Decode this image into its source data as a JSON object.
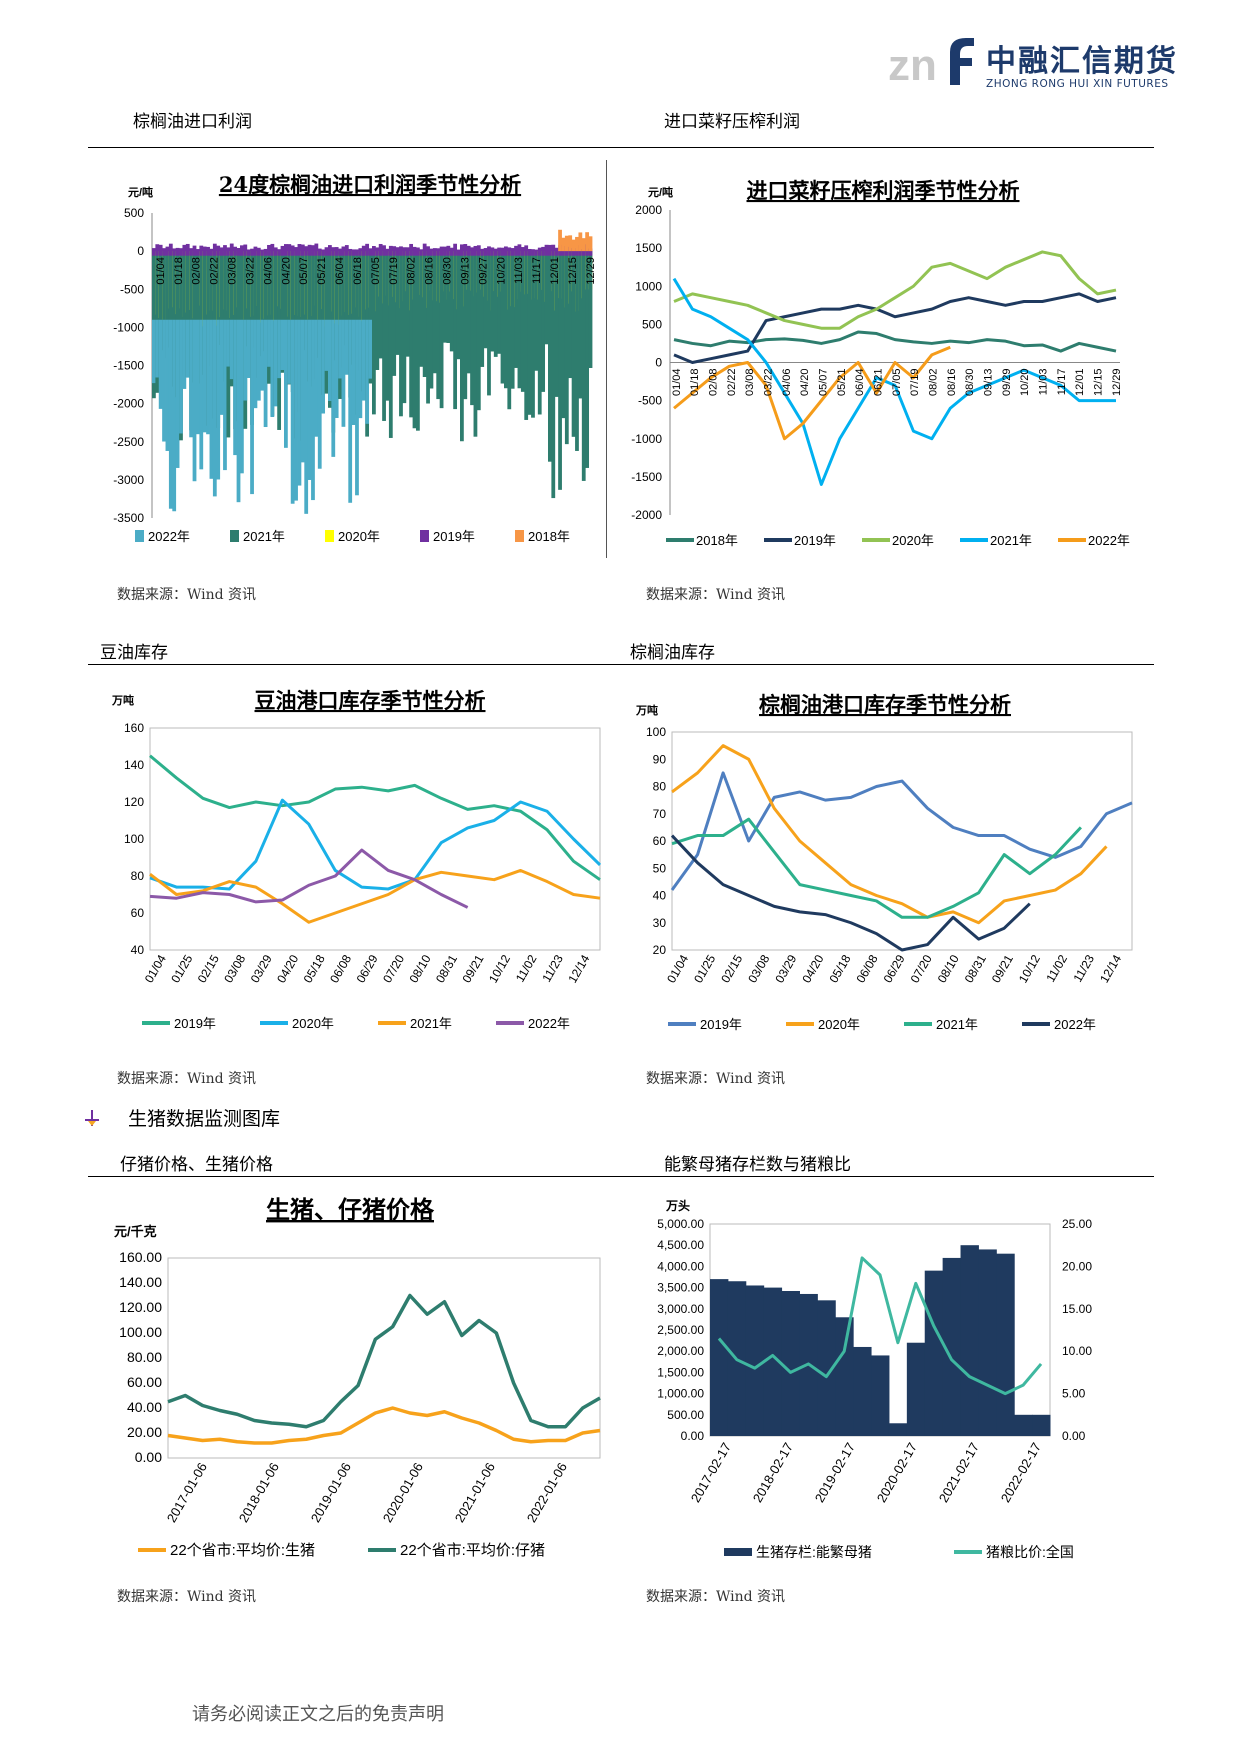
{
  "header": {
    "logo_cn": "中融汇信期货",
    "logo_en": "ZHONG RONG HUI XIN FUTURES",
    "logo_mark": "znf"
  },
  "sections": {
    "palm_import_profit": "棕榈油进口利润",
    "rapeseed_crush_profit": "进口菜籽压榨利润",
    "soyoil_inventory": "豆油库存",
    "palm_inventory": "棕榈油库存",
    "hog_monitor": "生猪数据监测图库",
    "piglet_hog_price": "仔猪价格、生猪价格",
    "sow_ratio": "能繁母猪存栏数与猪粮比"
  },
  "source_label": "数据来源：Wind 资讯",
  "footer": "请务必阅读正文之后的免责声明",
  "colors": {
    "c2022_palm": "#4bacc6",
    "c2021_palm": "#2e7d6e",
    "c2020_palm": "#ffff00",
    "c2019_palm": "#7030a0",
    "c2018_palm": "#f79646",
    "c2018_rs": "#2e7d6e",
    "c2019_rs": "#1f3a5f",
    "c2020_rs": "#92c353",
    "c2021_rs": "#00b0f0",
    "c2022_rs": "#f59c1a"
  },
  "chart_data": [
    {
      "id": "palm-profit",
      "type": "area",
      "title": "24度棕榈油进口利润季节性分析",
      "ylabel": "元/吨",
      "ylim": [
        -3500,
        500
      ],
      "yticks": [
        500,
        0,
        -500,
        -1000,
        -1500,
        -2000,
        -2500,
        -3000,
        -3500
      ],
      "xticks": [
        "01/04",
        "01/18",
        "02/08",
        "02/22",
        "03/08",
        "03/22",
        "04/06",
        "04/20",
        "05/07",
        "05/21",
        "06/04",
        "06/18",
        "07/05",
        "07/19",
        "08/02",
        "08/16",
        "08/30",
        "09/13",
        "09/27",
        "10/20",
        "11/03",
        "11/17",
        "12/01",
        "12/15",
        "12/29"
      ],
      "legend": [
        "2022年",
        "2021年",
        "2020年",
        "2019年",
        "2018年"
      ]
    },
    {
      "id": "rapeseed-profit",
      "type": "line",
      "title": "进口菜籽压榨利润季节性分析",
      "ylabel": "元/吨",
      "ylim": [
        -2000,
        2000
      ],
      "yticks": [
        2000,
        1500,
        1000,
        500,
        0,
        -500,
        -1000,
        -1500,
        -2000
      ],
      "xticks": [
        "01/04",
        "01/18",
        "02/08",
        "02/22",
        "03/08",
        "03/22",
        "04/06",
        "04/20",
        "05/07",
        "05/21",
        "06/04",
        "06/21",
        "07/05",
        "07/19",
        "08/02",
        "08/16",
        "08/30",
        "09/13",
        "09/29",
        "10/20",
        "11/03",
        "11/17",
        "12/01",
        "12/15",
        "12/29"
      ],
      "legend": [
        "2018年",
        "2019年",
        "2020年",
        "2021年",
        "2022年"
      ],
      "series": [
        {
          "name": "2018年",
          "values": [
            300,
            250,
            220,
            280,
            260,
            300,
            310,
            290,
            250,
            300,
            400,
            380,
            300,
            270,
            250,
            280,
            260,
            300,
            280,
            220,
            230,
            150,
            250,
            200,
            150
          ]
        },
        {
          "name": "2019年",
          "values": [
            100,
            0,
            50,
            100,
            150,
            550,
            600,
            650,
            700,
            700,
            750,
            700,
            600,
            650,
            700,
            800,
            850,
            800,
            750,
            800,
            800,
            850,
            900,
            800,
            850
          ]
        },
        {
          "name": "2020年",
          "values": [
            800,
            900,
            850,
            800,
            750,
            650,
            550,
            500,
            450,
            450,
            600,
            700,
            850,
            1000,
            1250,
            1300,
            1200,
            1100,
            1250,
            1350,
            1450,
            1400,
            1100,
            900,
            950
          ]
        },
        {
          "name": "2021年",
          "values": [
            1100,
            700,
            600,
            450,
            300,
            0,
            -400,
            -800,
            -1600,
            -1000,
            -600,
            -200,
            -300,
            -900,
            -1000,
            -600,
            -400,
            -300,
            -200,
            -100,
            -200,
            -300,
            -500,
            -500,
            -500
          ]
        },
        {
          "name": "2022年",
          "values": [
            -600,
            -400,
            -200,
            -50,
            0,
            -300,
            -1000,
            -800,
            -500,
            -200,
            0,
            -400,
            0,
            -200,
            100,
            200
          ]
        }
      ]
    },
    {
      "id": "soyoil-stock",
      "type": "line",
      "title": "豆油港口库存季节性分析",
      "ylabel": "万吨",
      "ylim": [
        40,
        160
      ],
      "yticks": [
        160,
        140,
        120,
        100,
        80,
        60,
        40
      ],
      "xticks": [
        "01/04",
        "01/25",
        "02/15",
        "03/08",
        "03/29",
        "04/20",
        "05/18",
        "06/08",
        "06/29",
        "07/20",
        "08/10",
        "08/31",
        "09/21",
        "10/12",
        "11/02",
        "11/23",
        "12/14"
      ],
      "legend": [
        "2019年",
        "2020年",
        "2021年",
        "2022年"
      ],
      "series": [
        {
          "name": "2019年",
          "values": [
            145,
            133,
            122,
            117,
            120,
            118,
            120,
            127,
            128,
            126,
            129,
            122,
            116,
            118,
            115,
            105,
            88,
            78
          ]
        },
        {
          "name": "2020年",
          "values": [
            79,
            74,
            74,
            73,
            88,
            121,
            108,
            83,
            74,
            73,
            78,
            98,
            106,
            110,
            120,
            115,
            100,
            86
          ]
        },
        {
          "name": "2021年",
          "values": [
            81,
            70,
            72,
            77,
            74,
            65,
            55,
            60,
            65,
            70,
            78,
            82,
            80,
            78,
            83,
            77,
            70,
            68
          ]
        },
        {
          "name": "2022年",
          "values": [
            69,
            68,
            71,
            70,
            66,
            67,
            75,
            80,
            94,
            83,
            78,
            70,
            63
          ]
        }
      ]
    },
    {
      "id": "palm-stock",
      "type": "line",
      "title": "棕榈油港口库存季节性分析",
      "ylabel": "万吨",
      "ylim": [
        20,
        100
      ],
      "yticks": [
        100,
        90,
        80,
        70,
        60,
        50,
        40,
        30,
        20
      ],
      "xticks": [
        "01/04",
        "01/25",
        "02/15",
        "03/08",
        "03/29",
        "04/20",
        "05/18",
        "06/08",
        "06/29",
        "07/20",
        "08/10",
        "08/31",
        "09/21",
        "10/12",
        "11/02",
        "11/23",
        "12/14"
      ],
      "legend": [
        "2019年",
        "2020年",
        "2021年",
        "2022年"
      ],
      "series": [
        {
          "name": "2019年",
          "values": [
            42,
            55,
            85,
            60,
            76,
            78,
            75,
            76,
            80,
            82,
            72,
            65,
            62,
            62,
            57,
            54,
            58,
            70,
            74
          ]
        },
        {
          "name": "2020年",
          "values": [
            78,
            85,
            95,
            90,
            72,
            60,
            52,
            44,
            40,
            37,
            32,
            34,
            30,
            38,
            40,
            42,
            48,
            58
          ]
        },
        {
          "name": "2021年",
          "values": [
            59,
            62,
            62,
            68,
            56,
            44,
            42,
            40,
            38,
            32,
            32,
            36,
            41,
            55,
            48,
            55,
            65
          ]
        },
        {
          "name": "2022年",
          "values": [
            62,
            52,
            44,
            40,
            36,
            34,
            33,
            30,
            26,
            20,
            22,
            32,
            24,
            28,
            37
          ]
        }
      ]
    },
    {
      "id": "hog-price",
      "type": "line",
      "title": "生猪、仔猪价格",
      "ylabel": "元/千克",
      "ylim": [
        0,
        160
      ],
      "yticks": [
        "160.00",
        "140.00",
        "120.00",
        "100.00",
        "80.00",
        "60.00",
        "40.00",
        "20.00",
        "0.00"
      ],
      "xticks": [
        "2017-01-06",
        "2018-01-06",
        "2019-01-06",
        "2020-01-06",
        "2021-01-06",
        "2022-01-06"
      ],
      "legend": [
        "22个省市:平均价:生猪",
        "22个省市:平均价:仔猪"
      ],
      "series": [
        {
          "name": "22个省市:平均价:生猪",
          "values": [
            18,
            16,
            14,
            15,
            13,
            12,
            12,
            14,
            15,
            18,
            20,
            28,
            36,
            40,
            36,
            34,
            37,
            32,
            28,
            22,
            15,
            13,
            14,
            14,
            20,
            22
          ]
        },
        {
          "name": "22个省市:平均价:仔猪",
          "values": [
            45,
            50,
            42,
            38,
            35,
            30,
            28,
            27,
            25,
            30,
            45,
            58,
            95,
            105,
            130,
            115,
            125,
            98,
            110,
            100,
            60,
            30,
            25,
            25,
            40,
            48
          ]
        }
      ]
    },
    {
      "id": "sow-ratio",
      "type": "bar",
      "title": "",
      "ylabel": "万头",
      "ylim": [
        0,
        5000
      ],
      "ylim_right": [
        0,
        25
      ],
      "yticks": [
        "5,000.00",
        "4,500.00",
        "4,000.00",
        "3,500.00",
        "3,000.00",
        "2,500.00",
        "2,000.00",
        "1,500.00",
        "1,000.00",
        "500.00",
        "0.00"
      ],
      "yticks_right": [
        "25.00",
        "20.00",
        "15.00",
        "10.00",
        "5.00",
        "0.00"
      ],
      "xticks": [
        "2017-02-17",
        "2018-02-17",
        "2019-02-17",
        "2020-02-17",
        "2021-02-17",
        "2022-02-17"
      ],
      "legend": [
        "生猪存栏:能繁母猪",
        "猪粮比价:全国"
      ],
      "series": [
        {
          "name": "生猪存栏:能繁母猪",
          "values": [
            3700,
            3650,
            3550,
            3500,
            3420,
            3350,
            3200,
            2800,
            2100,
            1900,
            300,
            2200,
            3900,
            4200,
            4500,
            4400,
            4300,
            500,
            500
          ]
        },
        {
          "name": "猪粮比价:全国",
          "values": [
            11.5,
            9,
            8,
            9.5,
            7.5,
            8.5,
            7,
            10,
            21,
            19,
            11,
            18,
            13,
            9,
            7,
            6,
            5,
            6,
            8.5
          ]
        }
      ]
    }
  ]
}
